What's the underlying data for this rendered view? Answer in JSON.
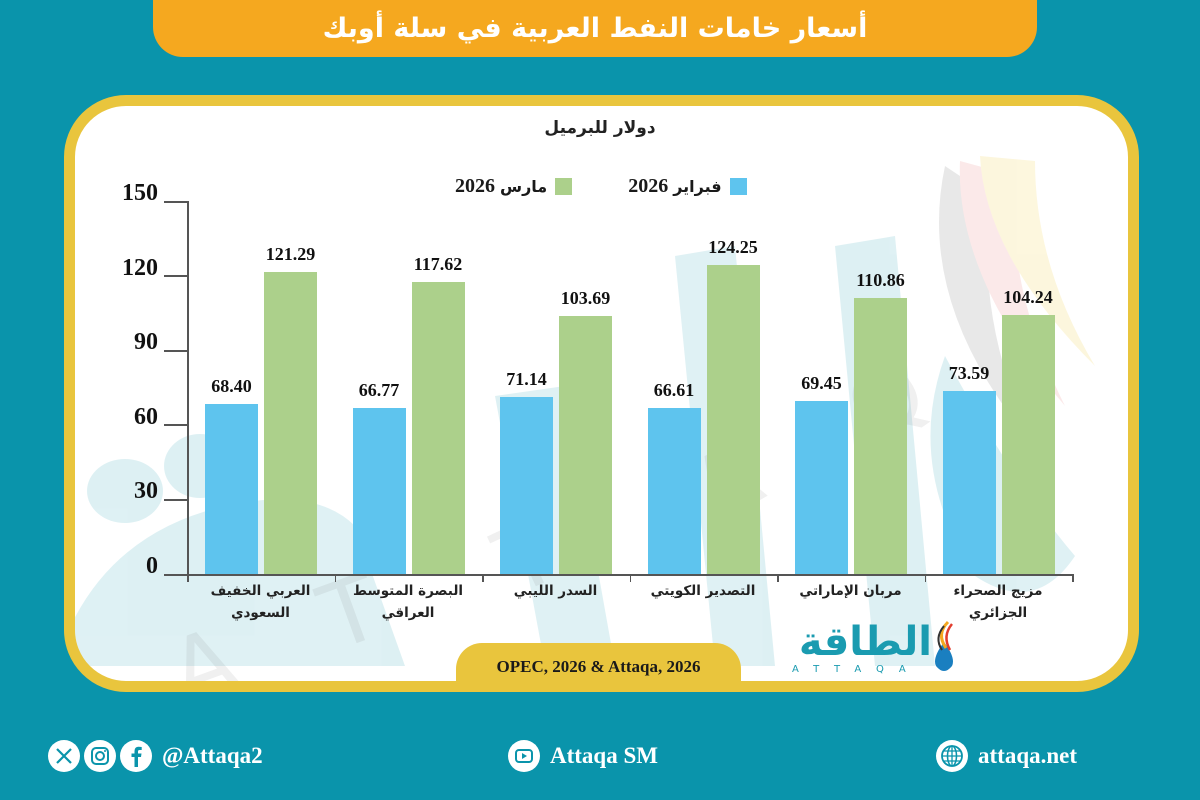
{
  "header": {
    "title": "أسعار خامات النفط العربية في سلة أوبك"
  },
  "chart": {
    "unit_label": "دولار للبرميل",
    "legend": [
      {
        "label_ar": "فبراير",
        "label_year": "2026",
        "color": "#5ec4ee"
      },
      {
        "label_ar": "مارس",
        "label_year": "2026",
        "color": "#acd08b"
      }
    ],
    "y_ticks": [
      "150",
      "120",
      "90",
      "60",
      "30",
      "0"
    ],
    "categories": [
      {
        "line1": "العربي الخفيف",
        "line2": "السعودي"
      },
      {
        "line1": "البصرة المتوسط",
        "line2": "العراقي"
      },
      {
        "line1": "السدر الليبي",
        "line2": ""
      },
      {
        "line1": "التصدير الكويتي",
        "line2": ""
      },
      {
        "line1": "مربان الإماراتي",
        "line2": ""
      },
      {
        "line1": "مزيج الصحراء",
        "line2": "الجزائري"
      }
    ],
    "feb_labels": [
      "68.40",
      "66.77",
      "71.14",
      "66.61",
      "69.45",
      "73.59"
    ],
    "mar_labels": [
      "121.29",
      "117.62",
      "103.69",
      "124.25",
      "110.86",
      "104.24"
    ]
  },
  "chart_data": {
    "type": "bar",
    "title": "أسعار خامات النفط العربية في سلة أوبك",
    "ylabel": "دولار للبرميل",
    "xlabel": "",
    "ylim": [
      0,
      150
    ],
    "y_ticks": [
      0,
      30,
      60,
      90,
      120,
      150
    ],
    "grid": false,
    "legend_position": "top-center",
    "categories": [
      "العربي الخفيف السعودي",
      "البصرة المتوسط العراقي",
      "السدر الليبي",
      "التصدير الكويتي",
      "مربان الإماراتي",
      "مزيج الصحراء الجزائري"
    ],
    "series": [
      {
        "name": "فبراير 2026",
        "color": "#5ec4ee",
        "values": [
          68.4,
          66.77,
          71.14,
          66.61,
          69.45,
          73.59
        ]
      },
      {
        "name": "مارس 2026",
        "color": "#acd08b",
        "values": [
          121.29,
          117.62,
          103.69,
          124.25,
          110.86,
          104.24
        ]
      }
    ]
  },
  "source": {
    "text": "OPEC, 2026 & Attaqa, 2026"
  },
  "logo": {
    "arabic": "الطاقة",
    "latin": "ATTAQA"
  },
  "footer": {
    "social_handle": "@Attaqa2",
    "youtube": "Attaqa SM",
    "website": "attaqa.net"
  }
}
